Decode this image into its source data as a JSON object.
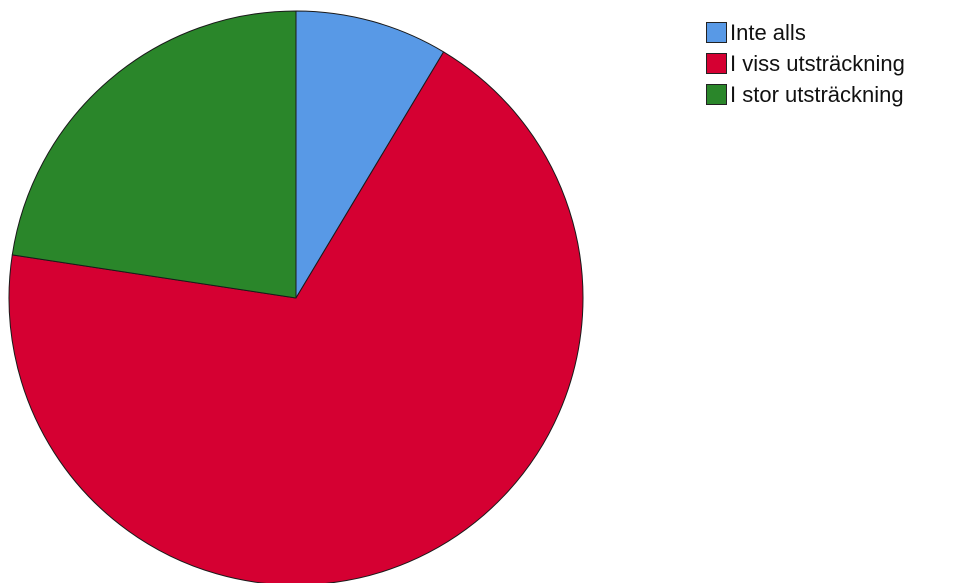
{
  "chart_data": {
    "type": "pie",
    "start_angle_deg": 0,
    "direction": "clockwise",
    "slices": [
      {
        "label": "Inte alls",
        "value": 8.6,
        "color": "#5899E6"
      },
      {
        "label": "I viss utsträckning",
        "value": 68.8,
        "color": "#D50032"
      },
      {
        "label": "I stor utsträckning",
        "value": 22.6,
        "color": "#2A862A"
      }
    ],
    "legend_position": "top-right"
  }
}
